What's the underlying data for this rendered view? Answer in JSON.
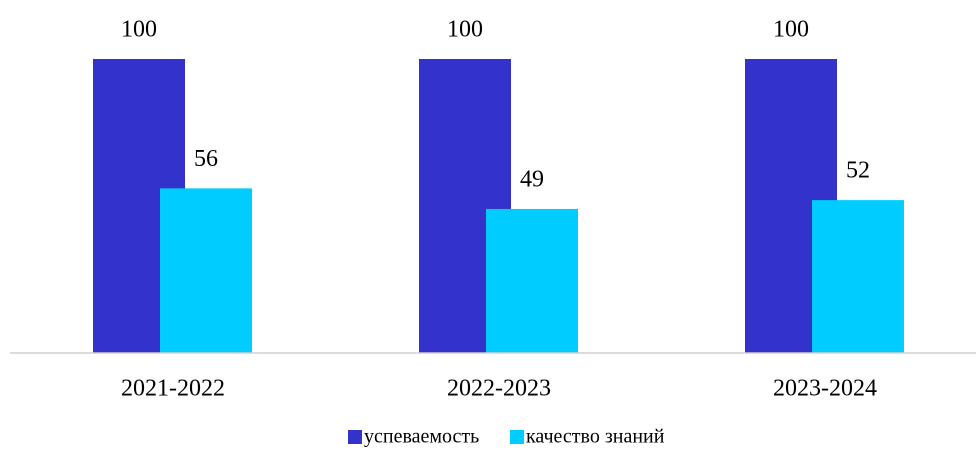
{
  "chart_data": {
    "type": "bar",
    "categories": [
      "2021-2022",
      "2022-2023",
      "2023-2024"
    ],
    "series": [
      {
        "name": "успеваемость",
        "color": "#3333cc",
        "values": [
          100,
          100,
          100
        ]
      },
      {
        "name": "качество знаний",
        "color": "#00ccff",
        "values": [
          56,
          49,
          52
        ]
      }
    ],
    "legend": "bottom"
  }
}
